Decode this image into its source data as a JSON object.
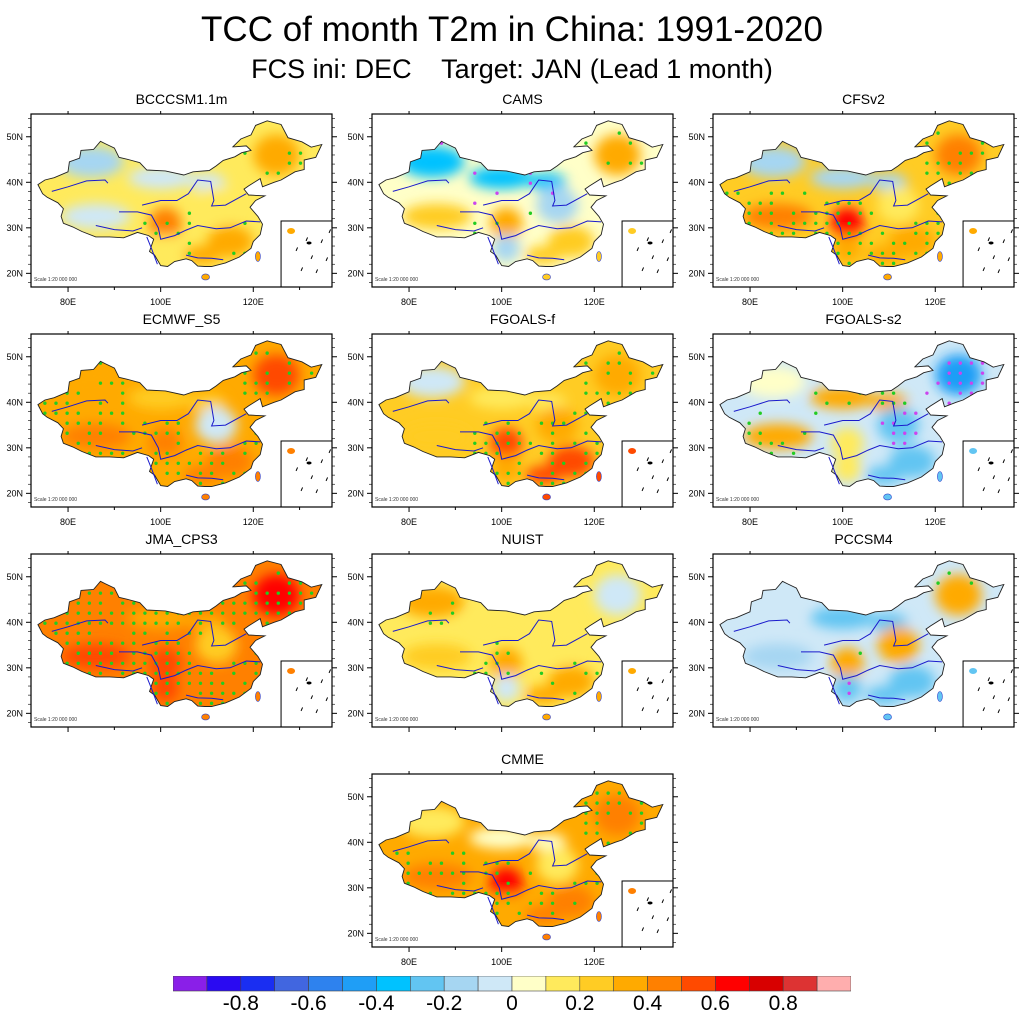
{
  "figure": {
    "title": "TCC of month T2m in China: 1991-2020",
    "subtitle": "FCS ini: DEC    Target: JAN (Lead 1 month)"
  },
  "chart_data": {
    "type": "heatmap",
    "title": "TCC of month T2m in China: 1991-2020",
    "subtitle": "FCS ini: DEC    Target: JAN (Lead 1 month)",
    "map_extent": {
      "lon": [
        72,
        137
      ],
      "lat": [
        17,
        55
      ]
    },
    "xticks": [
      80,
      100,
      120
    ],
    "xtick_labels": [
      "80E",
      "100E",
      "120E"
    ],
    "yticks": [
      20,
      30,
      40,
      50
    ],
    "ytick_labels": [
      "20N",
      "30N",
      "40N",
      "50N"
    ],
    "scale_label": "Scale 1:20 000 000",
    "significance_marker_colors": {
      "positive": "#22cc22",
      "negative": "#cc44ee"
    },
    "colorbar": {
      "levels": [
        -0.9,
        -0.8,
        -0.7,
        -0.6,
        -0.5,
        -0.4,
        -0.3,
        -0.2,
        -0.1,
        0,
        0.1,
        0.2,
        0.3,
        0.4,
        0.5,
        0.6,
        0.7,
        0.8,
        0.9
      ],
      "labels": [
        "-0.8",
        "-0.6",
        "-0.4",
        "-0.2",
        "0",
        "0.2",
        "0.4",
        "0.6",
        "0.8"
      ],
      "label_values": [
        -0.8,
        -0.6,
        -0.4,
        -0.2,
        0,
        0.2,
        0.4,
        0.6,
        0.8
      ],
      "colors": [
        "#8a1fe8",
        "#2a0af2",
        "#1a2ef2",
        "#4166e0",
        "#2e82ee",
        "#1f9ef6",
        "#00c2ff",
        "#62c5f2",
        "#a6d6f2",
        "#cfe8f7",
        "#ffffc8",
        "#ffea5c",
        "#ffcc24",
        "#ffaa00",
        "#ff8000",
        "#ff4a00",
        "#ff0000",
        "#d80000",
        "#dd3333",
        "#ffaeae"
      ],
      "placement": "bottom"
    },
    "panels": [
      {
        "name": "BCCCSM1.1m",
        "pattern": {
          "north_west": -0.15,
          "tibet": -0.1,
          "north_east": 0.3,
          "central": 0.15,
          "south_east": 0.35,
          "sichuan": 0.45,
          "north_central": -0.05,
          "south_west": 0.1
        },
        "significant_positive": "sparse",
        "significant_negative": "none"
      },
      {
        "name": "CAMS",
        "pattern": {
          "north_west": -0.35,
          "tibet": 0.25,
          "north_east": 0.35,
          "central": -0.2,
          "south_east": 0.2,
          "sichuan": 0.3,
          "north_central": -0.35,
          "south_west": -0.2
        },
        "significant_positive": "sparse",
        "significant_negative": "few"
      },
      {
        "name": "CFSv2",
        "pattern": {
          "north_west": -0.2,
          "tibet": 0.45,
          "north_east": 0.4,
          "central": 0.1,
          "south_east": 0.3,
          "sichuan": 0.6,
          "north_central": -0.15,
          "south_west": 0.3
        },
        "significant_positive": "many",
        "significant_negative": "none"
      },
      {
        "name": "ECMWF_S5",
        "pattern": {
          "north_west": 0.3,
          "tibet": 0.45,
          "north_east": 0.5,
          "central": -0.1,
          "south_east": 0.4,
          "sichuan": 0.45,
          "north_central": 0.2,
          "south_west": 0.3
        },
        "significant_positive": "many",
        "significant_negative": "none"
      },
      {
        "name": "FGOALS-f",
        "pattern": {
          "north_west": -0.1,
          "tibet": 0.25,
          "north_east": 0.35,
          "central": 0.3,
          "south_east": 0.55,
          "sichuan": 0.55,
          "north_central": 0.1,
          "south_west": 0.35
        },
        "significant_positive": "many",
        "significant_negative": "none"
      },
      {
        "name": "FGOALS-s2",
        "pattern": {
          "north_west": 0.05,
          "tibet": 0.35,
          "north_east": -0.45,
          "central": -0.3,
          "south_east": -0.25,
          "sichuan": 0.15,
          "north_central": 0.35,
          "south_west": 0.1
        },
        "significant_positive": "some",
        "significant_negative": "many"
      },
      {
        "name": "JMA_CPS3",
        "pattern": {
          "north_west": 0.45,
          "tibet": 0.5,
          "north_east": 0.6,
          "central": 0.2,
          "south_east": 0.4,
          "sichuan": 0.55,
          "north_central": 0.35,
          "south_west": 0.5
        },
        "significant_positive": "dense",
        "significant_negative": "none"
      },
      {
        "name": "NUIST",
        "pattern": {
          "north_west": 0.3,
          "tibet": 0.2,
          "north_east": -0.1,
          "central": 0.15,
          "south_east": 0.3,
          "sichuan": 0.35,
          "north_central": 0.1,
          "south_west": -0.1
        },
        "significant_positive": "some",
        "significant_negative": "none"
      },
      {
        "name": "PCCSM4",
        "pattern": {
          "north_west": -0.1,
          "tibet": -0.2,
          "north_east": 0.3,
          "central": 0.3,
          "south_east": -0.25,
          "sichuan": 0.35,
          "north_central": -0.25,
          "south_west": -0.3
        },
        "significant_positive": "few",
        "significant_negative": "few"
      },
      {
        "name": "CMME",
        "pattern": {
          "north_west": 0.1,
          "tibet": 0.45,
          "north_east": 0.4,
          "central": 0.1,
          "south_east": 0.4,
          "sichuan": 0.6,
          "north_central": 0.05,
          "south_west": 0.35
        },
        "significant_positive": "many",
        "significant_negative": "none"
      }
    ]
  }
}
